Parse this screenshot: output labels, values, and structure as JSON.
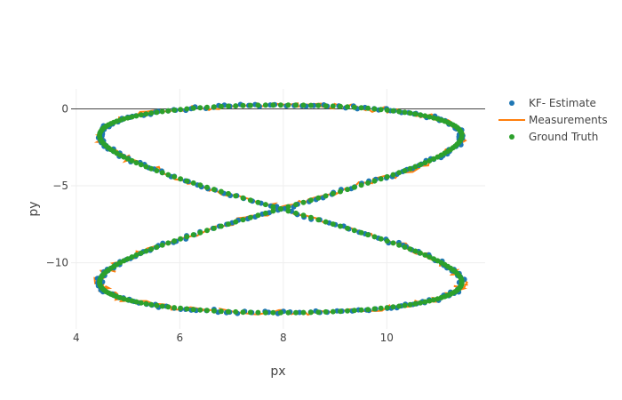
{
  "chart_data": {
    "type": "scatter",
    "xlabel": "px",
    "ylabel": "py",
    "xlim": [
      3.9,
      11.9
    ],
    "ylim": [
      -14.3,
      1.3
    ],
    "x_ticks": [
      4,
      6,
      8,
      10
    ],
    "y_ticks": [
      0,
      -5,
      -10
    ],
    "x_tick_labels": [
      "4",
      "6",
      "8",
      "10"
    ],
    "y_tick_labels": [
      "0",
      "−5",
      "−10"
    ],
    "grid": true,
    "zero_line": true,
    "legend_position": "top-right",
    "trajectory_shape": "figure-eight",
    "center": [
      7.95,
      -6.5
    ],
    "x_amplitude": 3.5,
    "y_amplitude": 6.75,
    "point_count": 300,
    "series": [
      {
        "name": "KF- Estimate",
        "mode": "markers",
        "color": "#1f77b4",
        "jitter": 0.06,
        "phase_offset": 0.012
      },
      {
        "name": "Measurements",
        "mode": "lines",
        "color": "#ff7f0e",
        "jitter": 0.12,
        "phase_offset": -0.01
      },
      {
        "name": "Ground Truth",
        "mode": "markers",
        "color": "#2ca02c",
        "jitter": 0.0,
        "phase_offset": 0.0
      }
    ]
  }
}
